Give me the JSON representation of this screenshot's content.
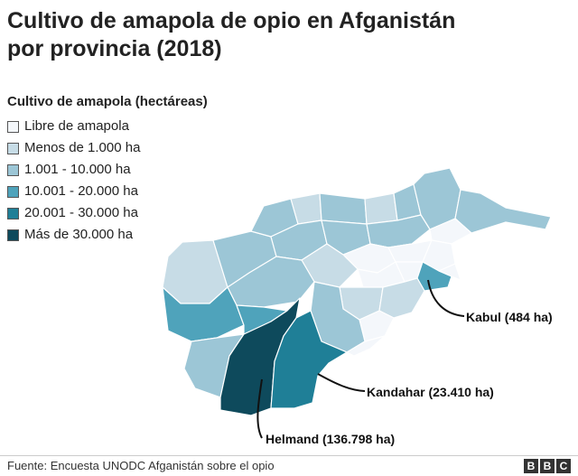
{
  "title": "Cultivo de amapola de opio en Afganistán por provincia (2018)",
  "legend": {
    "title": "Cultivo de amapola (hectáreas)",
    "items": [
      {
        "label": "Libre de amapola",
        "color": "#f4f7fb"
      },
      {
        "label": "Menos de 1.000 ha",
        "color": "#c7dce6"
      },
      {
        "label": "1.001 - 10.000 ha",
        "color": "#9cc6d6"
      },
      {
        "label": "10.001 - 20.000 ha",
        "color": "#4fa3bb"
      },
      {
        "label": "20.001 - 30.000 ha",
        "color": "#1f7f97"
      },
      {
        "label": "Más de 30.000 ha",
        "color": "#0e4a5c"
      }
    ]
  },
  "annotations": {
    "kabul": "Kabul (484 ha)",
    "kandahar": "Kandahar (23.410 ha)",
    "helmand": "Helmand (136.798 ha)"
  },
  "source": "Fuente: Encuesta UNODC Afganistán sobre el opio",
  "brand": {
    "letters": [
      "B",
      "B",
      "C"
    ]
  }
}
